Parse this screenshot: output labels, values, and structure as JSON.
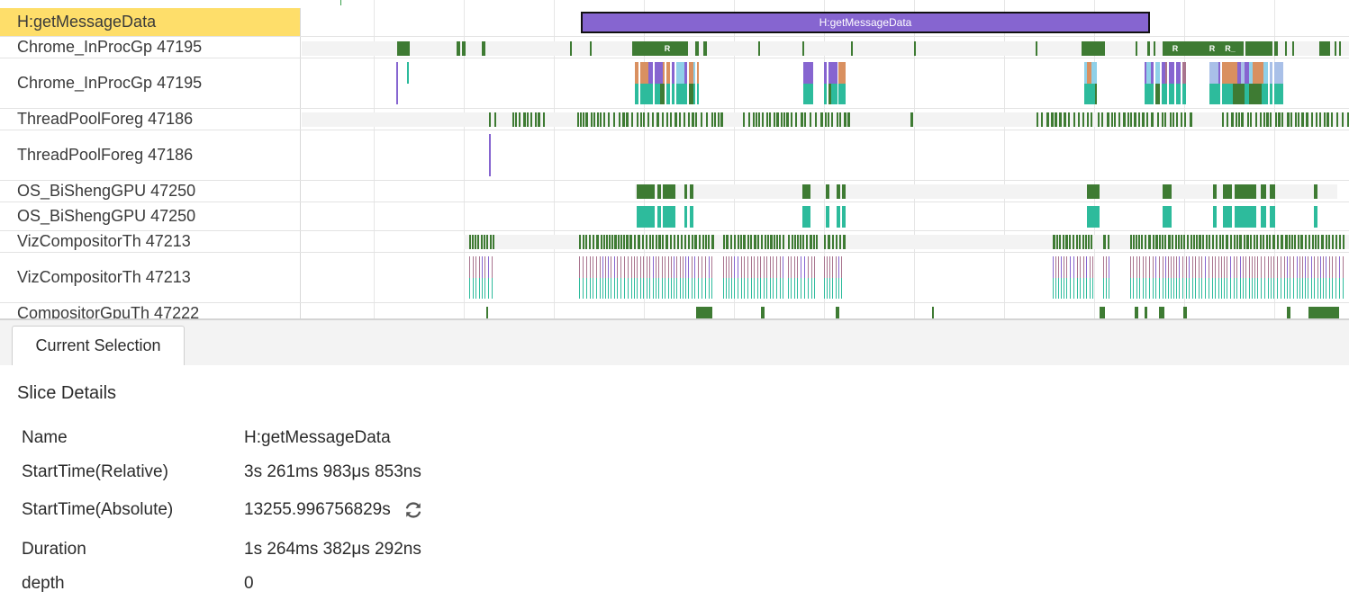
{
  "trace": {
    "rows": [
      {
        "label": "H:getMessageData",
        "selected": true
      },
      {
        "label": "Chrome_InProcGp 47195"
      },
      {
        "label": "Chrome_InProcGp 47195"
      },
      {
        "label": "ThreadPoolForeg 47186"
      },
      {
        "label": "ThreadPoolForeg 47186"
      },
      {
        "label": "OS_BiShengGPU 47250"
      },
      {
        "label": "OS_BiShengGPU 47250"
      },
      {
        "label": "VizCompositorTh 47213"
      },
      {
        "label": "VizCompositorTh 47213"
      },
      {
        "label": "CompositorGpuTh 47222"
      }
    ],
    "selected_slice_label": "H:getMessageData",
    "slice_glyphs": [
      "R",
      "R",
      "R",
      "R_"
    ],
    "colors": {
      "selected_row": "#fede6a",
      "slice_dark_green": "#3e7b33",
      "slice_teal": "#2dbb9c",
      "slice_purple": "#8665d0",
      "slice_mauve": "#a8748e",
      "slice_orange": "#d99060"
    }
  },
  "tabs": [
    {
      "label": "Current Selection",
      "active": true
    }
  ],
  "details": {
    "title": "Slice Details",
    "rows": [
      {
        "key": "Name",
        "value": "H:getMessageData"
      },
      {
        "key": "StartTime(Relative)",
        "value": "3s 261ms 983μs 853ns"
      },
      {
        "key": "StartTime(Absolute)",
        "value": "13255.996756829s",
        "icon": "refresh-icon"
      },
      {
        "key": "Duration",
        "value": "1s 264ms 382μs 292ns"
      },
      {
        "key": "depth",
        "value": "0"
      }
    ]
  }
}
